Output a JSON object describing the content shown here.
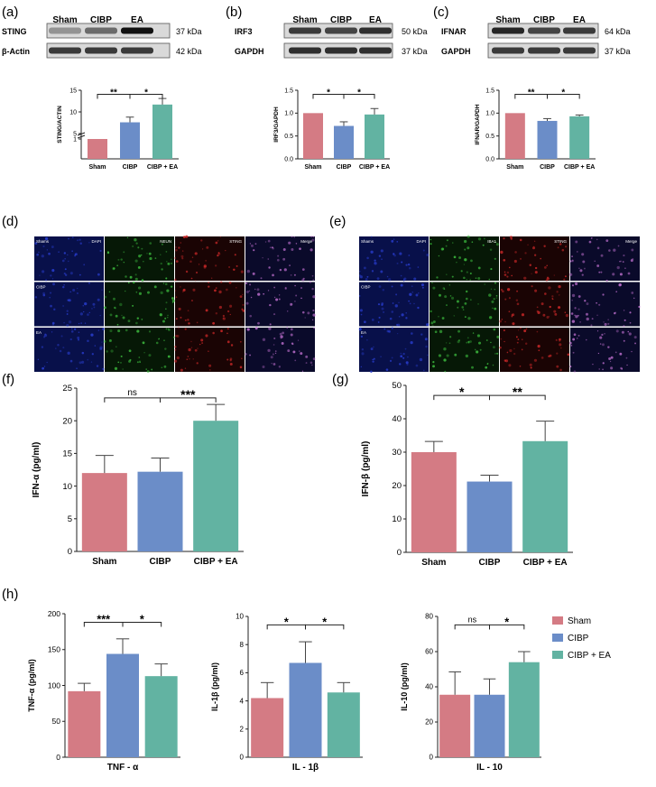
{
  "colors": {
    "sham": "#d47b84",
    "cibp": "#6b8dc8",
    "ea": "#62b3a2",
    "axis": "#222222"
  },
  "panel_labels": [
    "(a)",
    "(b)",
    "(c)",
    "(d)",
    "(e)",
    "(f)",
    "(g)",
    "(h)"
  ],
  "blots": [
    {
      "lanes": [
        "Sham",
        "CIBP",
        "EA"
      ],
      "rows": [
        {
          "name": "STING",
          "kda": "37 kDa"
        },
        {
          "name": "β-Actin",
          "kda": "42 kDa"
        }
      ]
    },
    {
      "lanes": [
        "Sham",
        "CIBP",
        "EA"
      ],
      "rows": [
        {
          "name": "IRF3",
          "kda": "50 kDa"
        },
        {
          "name": "GAPDH",
          "kda": "37 kDa"
        }
      ]
    },
    {
      "lanes": [
        "Sham",
        "CIBP",
        "EA"
      ],
      "rows": [
        {
          "name": "IFNAR",
          "kda": "64 kDa"
        },
        {
          "name": "GAPDH",
          "kda": "37 kDa"
        }
      ]
    }
  ],
  "micrographs": [
    {
      "rows": [
        "Shams",
        "CIBP",
        "EA"
      ],
      "channels": [
        "DAPI",
        "NEUN",
        "STING",
        "Merge"
      ]
    },
    {
      "rows": [
        "Shams",
        "CIBP",
        "EA"
      ],
      "channels": [
        "DAPI",
        "IBA1",
        "STING",
        "Merge"
      ]
    }
  ],
  "legend": [
    "Sham",
    "CIBP",
    "CIBP + EA"
  ],
  "chart_data": [
    {
      "type": "bar",
      "panel": "a",
      "ylabel": "STING/ACTIN",
      "categories": [
        "Sham",
        "CIBP",
        "CIBP + EA"
      ],
      "values": [
        1.0,
        7.6,
        11.7
      ],
      "errors": [
        0,
        1.2,
        1.4
      ],
      "yticks": [
        1,
        5,
        10,
        15
      ],
      "ylim": [
        0,
        15
      ],
      "broken_axis": true,
      "significance": [
        {
          "pair": [
            0,
            1
          ],
          "label": "**"
        },
        {
          "pair": [
            1,
            2
          ],
          "label": "*"
        }
      ]
    },
    {
      "type": "bar",
      "panel": "b",
      "ylabel": "IRF3/GAPDH",
      "categories": [
        "Sham",
        "CIBP",
        "CIBP + EA"
      ],
      "values": [
        1.0,
        0.72,
        0.97
      ],
      "errors": [
        0,
        0.09,
        0.13
      ],
      "yticks": [
        0.0,
        0.5,
        1.0,
        1.5
      ],
      "ylim": [
        0,
        1.5
      ],
      "significance": [
        {
          "pair": [
            0,
            1
          ],
          "label": "*"
        },
        {
          "pair": [
            1,
            2
          ],
          "label": "*"
        }
      ]
    },
    {
      "type": "bar",
      "panel": "c",
      "ylabel": "IFNAR/GAPDH",
      "categories": [
        "Sham",
        "CIBP",
        "CIBP + EA"
      ],
      "values": [
        1.0,
        0.83,
        0.93
      ],
      "errors": [
        0,
        0.05,
        0.03
      ],
      "yticks": [
        0.0,
        0.5,
        1.0,
        1.5
      ],
      "ylim": [
        0,
        1.5
      ],
      "significance": [
        {
          "pair": [
            0,
            1
          ],
          "label": "**"
        },
        {
          "pair": [
            1,
            2
          ],
          "label": "*"
        }
      ]
    },
    {
      "type": "bar",
      "panel": "f",
      "ylabel": "IFN-α (pg/ml)",
      "categories": [
        "Sham",
        "CIBP",
        "CIBP + EA"
      ],
      "values": [
        12.0,
        12.2,
        20.0
      ],
      "errors": [
        2.7,
        2.1,
        2.5
      ],
      "yticks": [
        0,
        5,
        10,
        15,
        20,
        25
      ],
      "ylim": [
        0,
        25
      ],
      "significance": [
        {
          "pair": [
            0,
            1
          ],
          "label": "ns"
        },
        {
          "pair": [
            1,
            2
          ],
          "label": "***"
        }
      ]
    },
    {
      "type": "bar",
      "panel": "g",
      "ylabel": "IFN-β (pg/ml)",
      "categories": [
        "Sham",
        "CIBP",
        "CIBP + EA"
      ],
      "values": [
        30.0,
        21.2,
        33.3
      ],
      "errors": [
        3.2,
        1.9,
        6.0
      ],
      "yticks": [
        0,
        10,
        20,
        30,
        40,
        50
      ],
      "ylim": [
        0,
        50
      ],
      "significance": [
        {
          "pair": [
            0,
            1
          ],
          "label": "*"
        },
        {
          "pair": [
            1,
            2
          ],
          "label": "**"
        }
      ]
    },
    {
      "type": "bar",
      "panel": "h1",
      "ylabel": "TNF-α (pg/ml)",
      "xlabel": "TNF - α",
      "categories": [
        "Sham",
        "CIBP",
        "CIBP + EA"
      ],
      "values": [
        92,
        144,
        113
      ],
      "errors": [
        11,
        21,
        17
      ],
      "yticks": [
        0,
        50,
        100,
        150,
        200
      ],
      "ylim": [
        0,
        200
      ],
      "significance": [
        {
          "pair": [
            0,
            1
          ],
          "label": "***"
        },
        {
          "pair": [
            1,
            2
          ],
          "label": "*"
        }
      ]
    },
    {
      "type": "bar",
      "panel": "h2",
      "ylabel": "IL-1β (pg/ml)",
      "xlabel": "IL - 1β",
      "categories": [
        "Sham",
        "CIBP",
        "CIBP + EA"
      ],
      "values": [
        4.2,
        6.7,
        4.6
      ],
      "errors": [
        1.1,
        1.5,
        0.7
      ],
      "yticks": [
        0,
        2,
        4,
        6,
        8,
        10
      ],
      "ylim": [
        0,
        10
      ],
      "significance": [
        {
          "pair": [
            0,
            1
          ],
          "label": "*"
        },
        {
          "pair": [
            1,
            2
          ],
          "label": "*"
        }
      ]
    },
    {
      "type": "bar",
      "panel": "h3",
      "ylabel": "IL-10 (pg/ml)",
      "xlabel": "IL - 10",
      "categories": [
        "Sham",
        "CIBP",
        "CIBP + EA"
      ],
      "values": [
        35.5,
        35.5,
        54.0
      ],
      "errors": [
        13,
        9,
        6
      ],
      "yticks": [
        0,
        20,
        40,
        60,
        80
      ],
      "ylim": [
        0,
        80
      ],
      "significance": [
        {
          "pair": [
            0,
            1
          ],
          "label": "ns"
        },
        {
          "pair": [
            1,
            2
          ],
          "label": "*"
        }
      ]
    }
  ]
}
